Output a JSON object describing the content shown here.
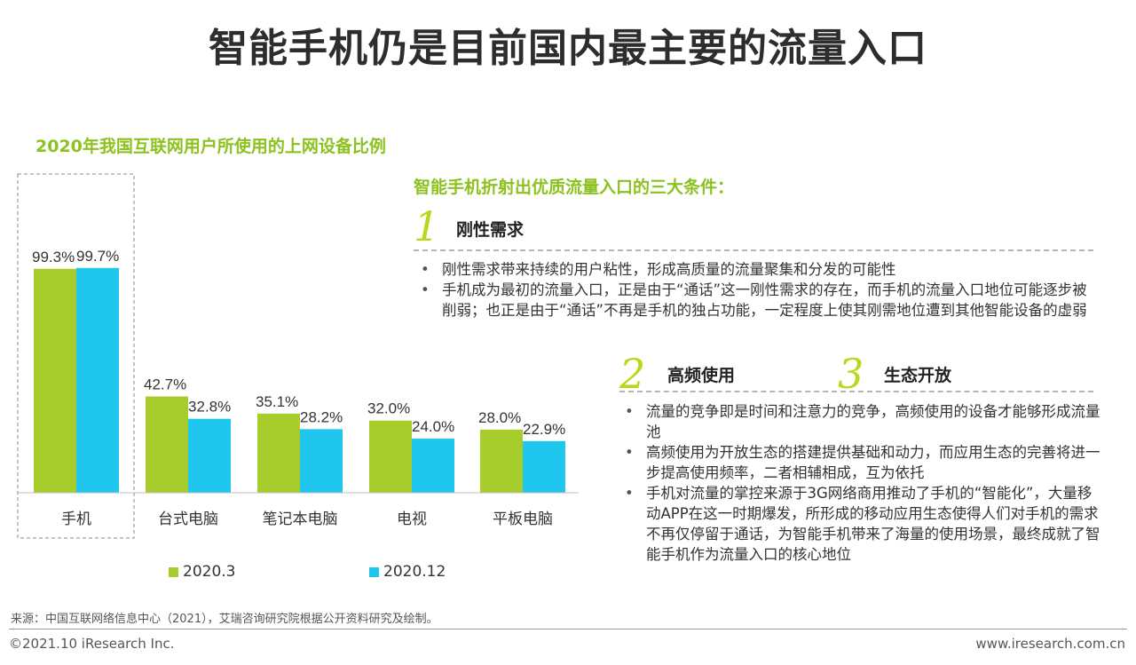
{
  "title": "智能手机仍是目前国内最主要的流量入口",
  "chart_data": {
    "type": "bar",
    "title": "2020年我国互联网用户所使用的上网设备比例",
    "categories": [
      "手机",
      "台式电脑",
      "笔记本电脑",
      "电视",
      "平板电脑"
    ],
    "series": [
      {
        "name": "2020.3",
        "values": [
          99.3,
          42.7,
          35.1,
          32.0,
          28.0
        ],
        "labels": [
          "99.3%",
          "42.7%",
          "35.1%",
          "32.0%",
          "28.0%"
        ],
        "color": "#a6cd2c"
      },
      {
        "name": "2020.12",
        "values": [
          99.7,
          32.8,
          28.2,
          24.0,
          22.9
        ],
        "labels": [
          "99.7%",
          "32.8%",
          "28.2%",
          "24.0%",
          "22.9%"
        ],
        "color": "#1fc7ee"
      }
    ],
    "ylim": [
      0,
      100
    ],
    "highlight_category": "手机",
    "grid": false,
    "legend_position": "bottom"
  },
  "right_panel": {
    "title": "智能手机折射出优质流量入口的三大条件：",
    "conditions": [
      {
        "number": "1",
        "label": "刚性需求"
      },
      {
        "number": "2",
        "label": "高频使用"
      },
      {
        "number": "3",
        "label": "生态开放"
      }
    ],
    "bullets_group1": [
      "刚性需求带来持续的用户粘性，形成高质量的流量聚集和分发的可能性",
      "手机成为最初的流量入口，正是由于“通话”这一刚性需求的存在，而手机的流量入口地位可能逐步被削弱；也正是由于“通话”不再是手机的独占功能，一定程度上使其刚需地位遭到其他智能设备的虚弱"
    ],
    "bullets_group2": [
      "流量的竞争即是时间和注意力的竞争，高频使用的设备才能够形成流量池",
      "高频使用为开放生态的搭建提供基础和动力，而应用生态的完善将进一步提高使用频率，二者相辅相成，互为依托",
      "手机对流量的掌控来源于3G网络商用推动了手机的“智能化”，大量移动APP在这一时期爆发，所形成的移动应用生态使得人们对手机的需求不再仅停留于通话，为智能手机带来了海量的使用场景，最终成就了智能手机作为流量入口的核心地位"
    ]
  },
  "source": "来源：中国互联网络信息中心（2021），艾瑞咨询研究院根据公开资料研究及绘制。",
  "copyright": "©2021.10 iResearch Inc.",
  "website": "www.iresearch.com.cn",
  "colors": {
    "accent_green": "#8cc21f",
    "bar_green": "#a6cd2c",
    "bar_blue": "#1fc7ee",
    "number_green": "#b7d91c"
  }
}
